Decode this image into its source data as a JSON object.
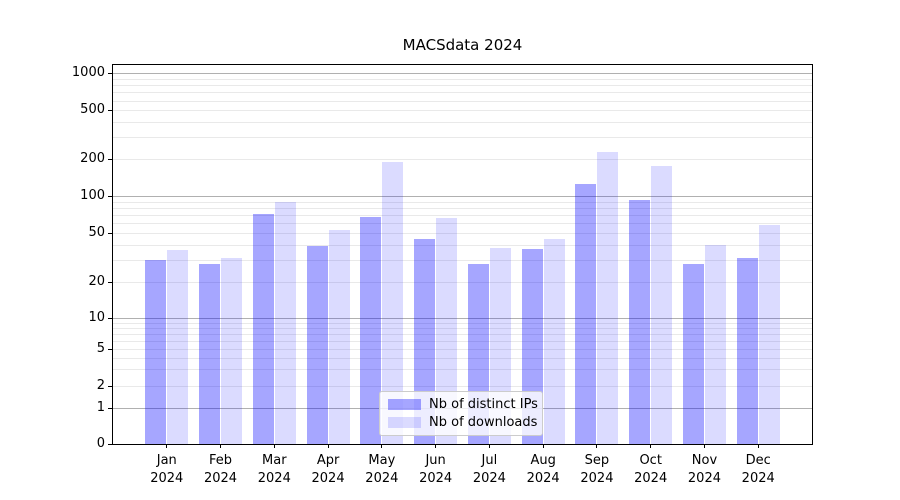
{
  "chart_data": {
    "type": "bar",
    "title": "MACSdata 2024",
    "categories": [
      "Jan",
      "Feb",
      "Mar",
      "Apr",
      "May",
      "Jun",
      "Jul",
      "Aug",
      "Sep",
      "Oct",
      "Nov",
      "Dec"
    ],
    "x_tick_second_line": "2024",
    "series": [
      {
        "name": "Nb of distinct IPs",
        "color": "rgba(0,0,255,0.35)",
        "color_hex_on_white": "#a6a6f2",
        "values": [
          30,
          28,
          72,
          39,
          68,
          45,
          28,
          37,
          125,
          92,
          28,
          31
        ]
      },
      {
        "name": "Nb of downloads",
        "color": "rgba(0,0,255,0.14)",
        "color_hex_on_white": "#dcdcf8",
        "values": [
          36,
          31,
          90,
          53,
          190,
          66,
          38,
          45,
          230,
          175,
          40,
          58
        ]
      }
    ],
    "xlabel": "",
    "ylabel": "",
    "yscale": "symlog",
    "y_ticks": [
      0,
      1,
      2,
      5,
      10,
      20,
      50,
      100,
      200,
      500,
      1000
    ],
    "ylim": [
      0,
      1200
    ],
    "grid": true,
    "grid_major_color": "#b0b0b0",
    "grid_minor_color": "#e9e9e9",
    "legend_position": "lower center"
  },
  "legend": {
    "items": [
      "Nb of distinct IPs",
      "Nb of downloads"
    ]
  }
}
